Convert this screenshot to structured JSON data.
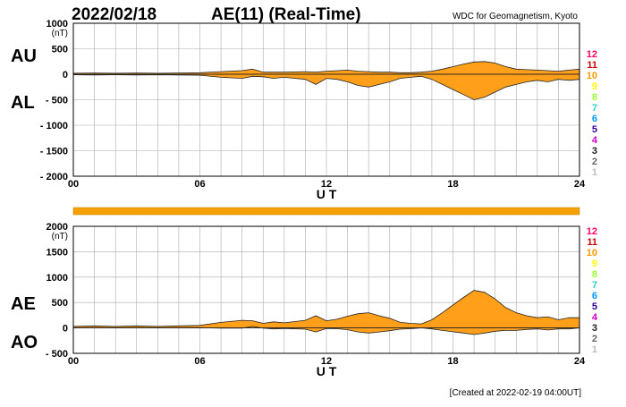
{
  "header": {
    "date": "2022/02/18",
    "title": "AE(11) (Real-Time)",
    "source": "WDC for Geomagnetism, Kyoto"
  },
  "footer": {
    "created": "[Created at 2022-02-19 04:00UT]"
  },
  "station_counts": {
    "labels": [
      "12",
      "11",
      "10",
      "9",
      "8",
      "7",
      "6",
      "5",
      "4",
      "3",
      "2",
      "1"
    ],
    "colors": [
      "#ff0066",
      "#cc0000",
      "#ff9900",
      "#ffff00",
      "#99ff33",
      "#33cccc",
      "#0099ff",
      "#330099",
      "#cc00cc",
      "#222222",
      "#666666",
      "#bbbbbb"
    ]
  },
  "colors": {
    "fill": "#ff9f1a",
    "outline": "#222222",
    "grid": "#aaaaaa",
    "bar": "#f5a100"
  },
  "chart_data": [
    {
      "type": "area",
      "title": "AU / AL",
      "xlabel": "U T",
      "ylabel": "(nT)",
      "series_labels": [
        "AU",
        "AL"
      ],
      "xlim": [
        0,
        24
      ],
      "ylim": [
        -2000,
        1000
      ],
      "xticks": [
        0,
        6,
        12,
        18,
        24
      ],
      "xtick_labels": [
        "00",
        "06",
        "12",
        "18",
        "24"
      ],
      "yticks": [
        1000,
        500,
        0,
        -500,
        -1000,
        -1500,
        -2000
      ],
      "ytick_labels": [
        "1000",
        "500",
        "0",
        "- 500",
        "- 1000",
        "- 1500",
        "- 2000"
      ],
      "x": [
        0,
        1,
        2,
        3,
        4,
        5,
        6,
        7,
        8,
        8.5,
        9,
        9.5,
        10,
        11,
        11.5,
        12,
        12.5,
        13,
        13.5,
        14,
        14.5,
        15,
        15.5,
        16,
        16.5,
        17,
        17.5,
        18,
        18.5,
        19,
        19.5,
        20,
        20.5,
        21,
        21.5,
        22,
        22.5,
        23,
        23.5,
        24
      ],
      "series": [
        {
          "name": "AU",
          "values": [
            20,
            25,
            20,
            25,
            20,
            25,
            30,
            50,
            70,
            100,
            40,
            40,
            40,
            50,
            40,
            60,
            70,
            80,
            60,
            50,
            40,
            40,
            30,
            30,
            40,
            60,
            100,
            150,
            200,
            240,
            250,
            220,
            150,
            100,
            90,
            80,
            70,
            60,
            80,
            100
          ]
        },
        {
          "name": "AL",
          "values": [
            -10,
            -15,
            -10,
            -15,
            -10,
            -15,
            -20,
            -60,
            -80,
            -40,
            -50,
            -80,
            -60,
            -100,
            -200,
            -80,
            -100,
            -150,
            -220,
            -250,
            -200,
            -150,
            -80,
            -60,
            -40,
            -100,
            -200,
            -300,
            -400,
            -500,
            -450,
            -350,
            -250,
            -200,
            -150,
            -120,
            -150,
            -100,
            -120,
            -100
          ]
        }
      ]
    },
    {
      "type": "area",
      "title": "AE / AO",
      "xlabel": "U T",
      "ylabel": "(nT)",
      "series_labels": [
        "AE",
        "AO"
      ],
      "xlim": [
        0,
        24
      ],
      "ylim": [
        -500,
        2000
      ],
      "xticks": [
        0,
        6,
        12,
        18,
        24
      ],
      "xtick_labels": [
        "00",
        "06",
        "12",
        "18",
        "24"
      ],
      "yticks": [
        2000,
        1500,
        1000,
        500,
        0,
        -500
      ],
      "ytick_labels": [
        "2000",
        "1500",
        "1000",
        "500",
        "0",
        "- 500"
      ],
      "x": [
        0,
        1,
        2,
        3,
        4,
        5,
        6,
        7,
        8,
        8.5,
        9,
        9.5,
        10,
        11,
        11.5,
        12,
        12.5,
        13,
        13.5,
        14,
        14.5,
        15,
        15.5,
        16,
        16.5,
        17,
        17.5,
        18,
        18.5,
        19,
        19.5,
        20,
        20.5,
        21,
        21.5,
        22,
        22.5,
        23,
        23.5,
        24
      ],
      "series": [
        {
          "name": "AE",
          "values": [
            30,
            40,
            30,
            40,
            30,
            40,
            50,
            110,
            150,
            140,
            90,
            120,
            100,
            150,
            240,
            140,
            170,
            230,
            280,
            300,
            240,
            190,
            110,
            90,
            80,
            160,
            300,
            450,
            600,
            740,
            700,
            570,
            400,
            300,
            240,
            200,
            220,
            160,
            200,
            200
          ]
        },
        {
          "name": "AO",
          "values": [
            5,
            5,
            5,
            5,
            5,
            5,
            5,
            -5,
            -5,
            30,
            -5,
            -20,
            -10,
            -25,
            -80,
            -10,
            -15,
            -35,
            -80,
            -100,
            -80,
            -55,
            -25,
            -15,
            0,
            -20,
            -50,
            -75,
            -100,
            -130,
            -100,
            -65,
            -50,
            -50,
            -30,
            -20,
            -40,
            -20,
            -20,
            0
          ]
        }
      ]
    }
  ]
}
